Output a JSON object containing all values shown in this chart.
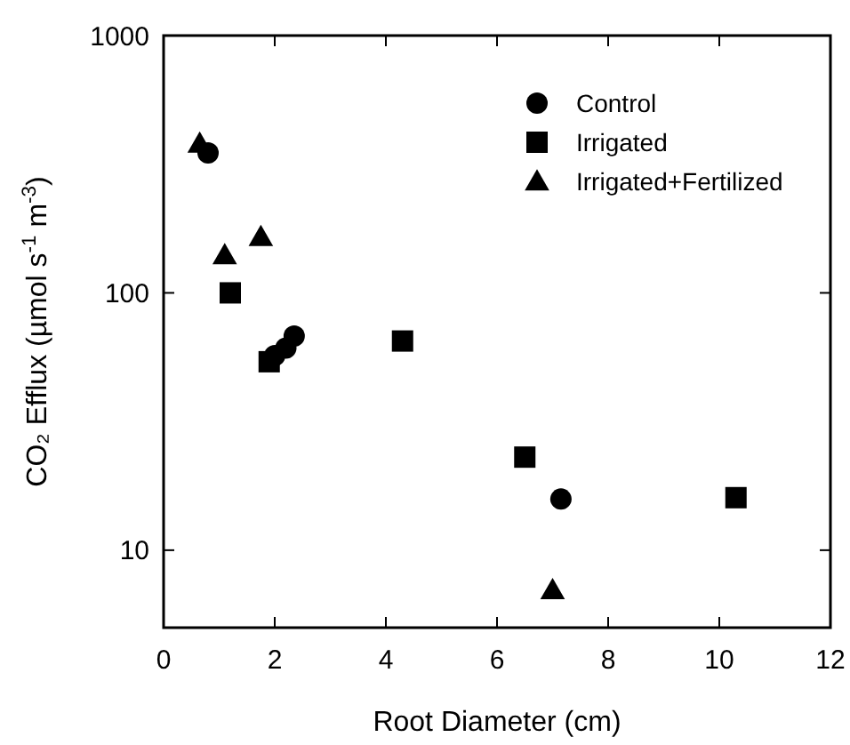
{
  "chart_data": {
    "type": "scatter",
    "xlabel": "Root Diameter (cm)",
    "ylabel": "CO₂ Efflux (µmol s$^{-1}$ m$^{-3}$)",
    "log": "y",
    "xlim": [
      0,
      12
    ],
    "xticks": [
      0,
      2,
      4,
      6,
      8,
      10,
      12
    ],
    "ylim": [
      5,
      1000
    ],
    "yticks": [
      10,
      100,
      1000
    ],
    "grid": false,
    "legend": "top right",
    "series": [
      {
        "name": "Control",
        "color": "#000000",
        "marker": "circle",
        "x": [
          0.8,
          2.0,
          2.2,
          2.35,
          7.15
        ],
        "values": [
          350,
          57,
          61,
          68,
          15.8
        ]
      },
      {
        "name": "Irrigated",
        "color": "#000000",
        "marker": "square",
        "x": [
          1.2,
          1.9,
          4.3,
          6.5,
          10.3
        ],
        "values": [
          100,
          54,
          65,
          23,
          16
        ]
      },
      {
        "name": "Irrigated+Fertilized",
        "color": "#000000",
        "marker": "triangle",
        "x": [
          0.65,
          1.1,
          1.75,
          7.0
        ],
        "values": [
          380,
          140,
          165,
          7
        ]
      }
    ]
  }
}
